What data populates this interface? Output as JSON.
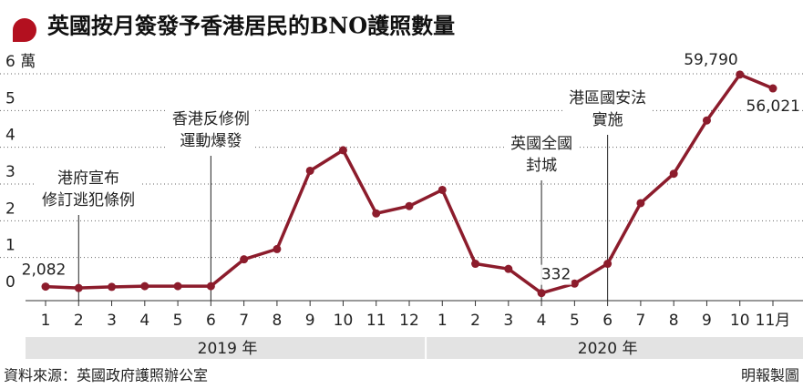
{
  "chart_data": {
    "type": "line",
    "title": "英國按月簽發予香港居民的BNO護照數量",
    "categories": [
      "1",
      "2",
      "3",
      "4",
      "5",
      "6",
      "7",
      "8",
      "9",
      "10",
      "11",
      "12",
      "1",
      "2",
      "3",
      "4",
      "5",
      "6",
      "7",
      "8",
      "9",
      "10",
      "11月"
    ],
    "groups": [
      {
        "label": "2019 年",
        "count": 12
      },
      {
        "label": "2020 年",
        "count": 11
      }
    ],
    "series": [
      {
        "name": "BNO護照數量",
        "color": "#8c1c2c",
        "values": [
          0.2082,
          0.17,
          0.2,
          0.22,
          0.22,
          0.22,
          0.95,
          1.23,
          3.36,
          3.92,
          2.2,
          2.4,
          2.84,
          0.83,
          0.69,
          0.0332,
          0.29,
          0.83,
          2.48,
          3.28,
          4.73,
          5.979,
          5.6021
        ],
        "value_labels": [
          "2,082",
          null,
          null,
          null,
          null,
          null,
          null,
          null,
          null,
          null,
          null,
          null,
          null,
          null,
          null,
          "332",
          null,
          null,
          null,
          null,
          null,
          "59,790",
          "56,021"
        ]
      }
    ],
    "ylim": [
      0,
      6
    ],
    "yticks": [
      0,
      1,
      2,
      3,
      4,
      5,
      {
        "value": 6,
        "label": "6 萬"
      }
    ],
    "grid": true,
    "annotations": [
      {
        "category": 1,
        "lines": [
          "港府宣布",
          "修訂逃犯條例"
        ]
      },
      {
        "category": 5,
        "lines": [
          "香港反修例",
          "運動爆發"
        ]
      },
      {
        "category": 15,
        "lines": [
          "英國全國",
          "封城"
        ]
      },
      {
        "category": 17,
        "lines": [
          "港區國安法",
          "實施"
        ]
      }
    ],
    "source": "資料來源：英國政府護照辦公室",
    "credit": "明報製圖"
  }
}
